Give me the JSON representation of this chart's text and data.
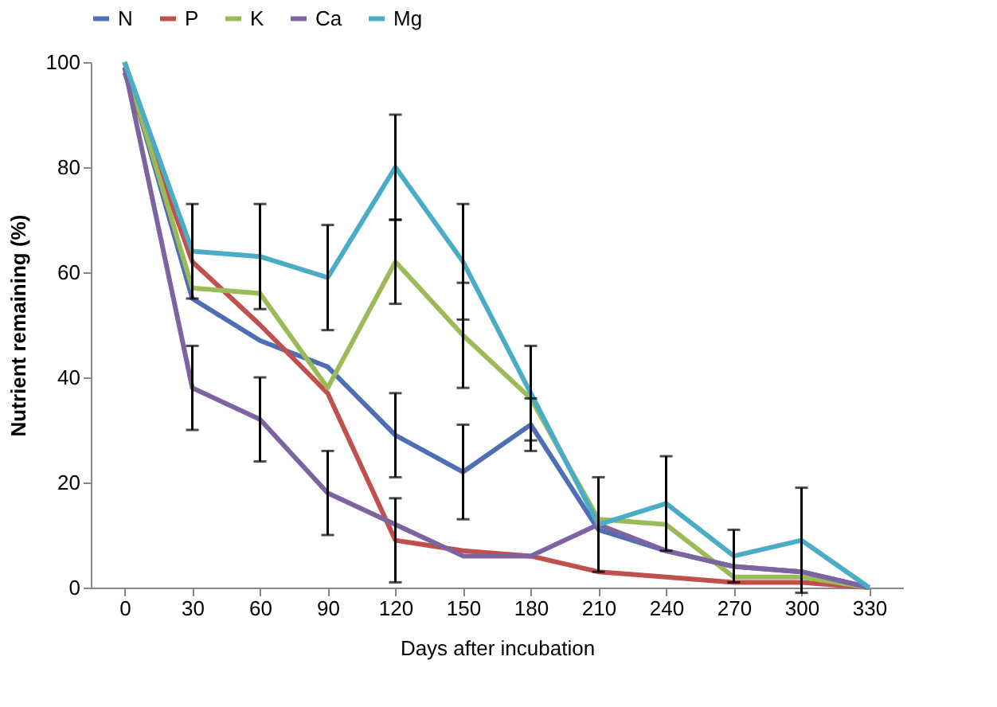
{
  "chart_data": {
    "type": "line",
    "xlabel": "Days after incubation",
    "ylabel": "Nutrient remaining (%)",
    "x": [
      0,
      30,
      60,
      90,
      120,
      150,
      180,
      210,
      240,
      270,
      300,
      330
    ],
    "xlim": [
      -15,
      345
    ],
    "xticks": [
      0,
      30,
      60,
      90,
      120,
      150,
      180,
      210,
      240,
      270,
      300,
      330
    ],
    "ylim": [
      0,
      100
    ],
    "yticks": [
      0,
      20,
      40,
      60,
      80,
      100
    ],
    "grid": false,
    "legend": "top",
    "marker": "none",
    "line_style": "solid",
    "series": [
      {
        "name": "N",
        "color": "#4f6fb5",
        "values": [
          100,
          55,
          47,
          42,
          29,
          22,
          31,
          11,
          7,
          4,
          3,
          0
        ],
        "errors": [
          null,
          null,
          null,
          null,
          8,
          9,
          5,
          null,
          null,
          null,
          null,
          null
        ]
      },
      {
        "name": "P",
        "color": "#c0504d",
        "values": [
          98,
          62,
          50,
          37,
          9,
          7,
          6,
          3,
          2,
          1,
          1,
          0
        ],
        "errors": [
          null,
          null,
          null,
          null,
          8,
          null,
          null,
          null,
          null,
          null,
          null,
          null
        ]
      },
      {
        "name": "K",
        "color": "#9bbb59",
        "values": [
          100,
          57,
          56,
          38,
          62,
          48,
          36,
          13,
          12,
          2,
          2,
          0
        ],
        "errors": [
          null,
          null,
          null,
          null,
          8,
          10,
          null,
          null,
          null,
          null,
          null,
          null
        ]
      },
      {
        "name": "Ca",
        "color": "#7e63a1",
        "values": [
          99,
          38,
          32,
          18,
          12,
          6,
          6,
          12,
          7,
          4,
          3,
          0
        ],
        "errors": [
          null,
          8,
          8,
          8,
          null,
          null,
          null,
          null,
          null,
          null,
          null,
          null
        ]
      },
      {
        "name": "Mg",
        "color": "#4bacc6",
        "values": [
          100,
          64,
          63,
          59,
          80,
          62,
          37,
          12,
          16,
          6,
          9,
          0
        ],
        "errors": [
          null,
          9,
          10,
          10,
          10,
          11,
          9,
          9,
          9,
          5,
          10,
          null
        ]
      }
    ]
  }
}
